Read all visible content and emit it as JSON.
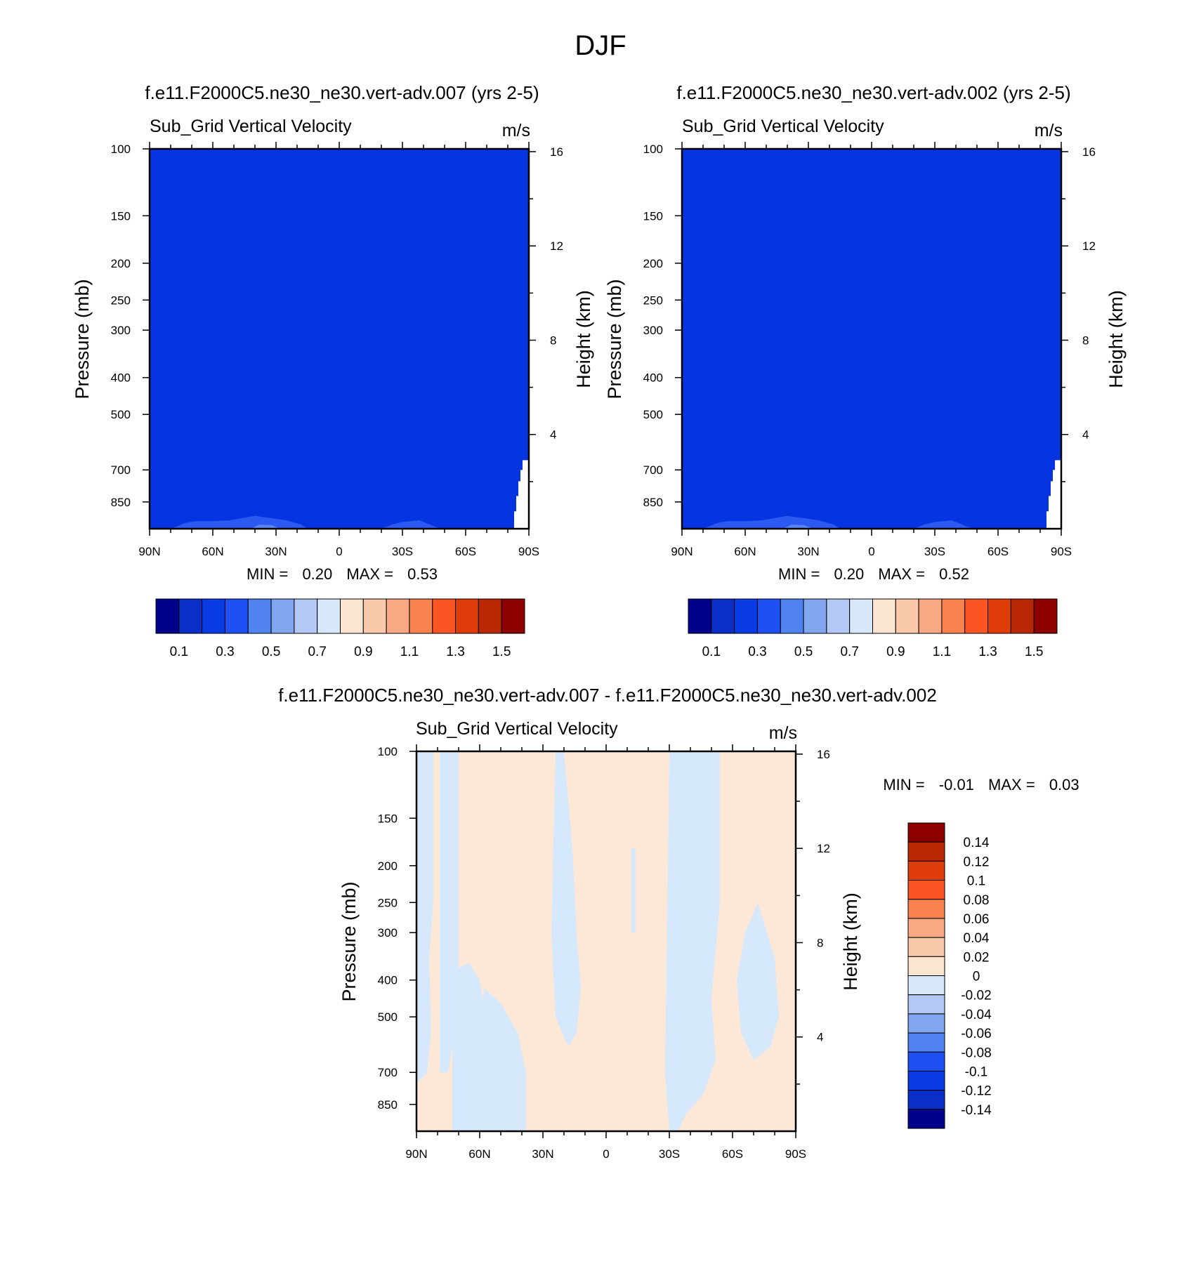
{
  "figure": {
    "title": "DJF",
    "diff_title": "f.e11.F2000C5.ne30_ne30.vert-adv.007 - f.e11.F2000C5.ne30_ne30.vert-adv.002"
  },
  "panels": [
    {
      "case_title": "f.e11.F2000C5.ne30_ne30.vert-adv.007 (yrs 2-5)",
      "field_title": "Sub_Grid Vertical Velocity",
      "units": "m/s",
      "ylabel": "Pressure (mb)",
      "ylabel_right": "Height (km)",
      "stats": {
        "min_label": "MIN =",
        "min": "0.20",
        "max_label": "MAX =",
        "max": "0.53"
      }
    },
    {
      "case_title": "f.e11.F2000C5.ne30_ne30.vert-adv.002 (yrs 2-5)",
      "field_title": "Sub_Grid Vertical Velocity",
      "units": "m/s",
      "ylabel": "Pressure (mb)",
      "ylabel_right": "Height (km)",
      "stats": {
        "min_label": "MIN =",
        "min": "0.20",
        "max_label": "MAX =",
        "max": "0.52"
      }
    },
    {
      "case_title": "",
      "field_title": "Sub_Grid Vertical Velocity",
      "units": "m/s",
      "ylabel": "Pressure (mb)",
      "ylabel_right": "Height (km)",
      "stats": {
        "min_label": "MIN =",
        "min": "-0.01",
        "max_label": "MAX =",
        "max": "0.03"
      }
    }
  ],
  "chart_data": [
    {
      "type": "heatmap",
      "title": "Sub_Grid Vertical Velocity",
      "units": "m/s",
      "x_ticks": [
        "90N",
        "60N",
        "30N",
        "0",
        "30S",
        "60S",
        "90S"
      ],
      "x_tick_values": [
        90,
        60,
        30,
        0,
        -30,
        -60,
        -90
      ],
      "xlim": [
        90,
        -90
      ],
      "y_ticks": [
        "100",
        "150",
        "200",
        "250",
        "300",
        "400",
        "500",
        "700",
        "850"
      ],
      "y_tick_values": [
        100,
        150,
        200,
        250,
        300,
        400,
        500,
        700,
        850
      ],
      "ylim": [
        100,
        1000
      ],
      "y_scale": "log",
      "y_right_ticks": [
        "16",
        "12",
        "8",
        "4"
      ],
      "y_right_values": [
        16,
        12,
        8,
        4
      ],
      "ylabel": "Pressure (mb)",
      "ylabel_right": "Height (km)",
      "min": 0.2,
      "max": 0.53,
      "dominant_value": 0.3,
      "features": [
        {
          "lat_range": [
            70,
            15
          ],
          "p_top": 840,
          "value": 0.4
        },
        {
          "lat_range": [
            -20,
            -45
          ],
          "p_top": 880,
          "value": 0.4
        },
        {
          "lat_range": [
            -87,
            -90
          ],
          "p_top": 660,
          "value": "missing"
        }
      ],
      "colorbar": {
        "labels": [
          "0.1",
          "0.3",
          "0.5",
          "0.7",
          "0.9",
          "1.1",
          "1.3",
          "1.5"
        ],
        "colors": [
          "#00008b",
          "#0a2fc8",
          "#0a3ce6",
          "#1e50f5",
          "#5082f0",
          "#82a5f0",
          "#b4c8f5",
          "#d7e8fa",
          "#fbe4d0",
          "#fac9ac",
          "#f8a882",
          "#f9824f",
          "#fa5523",
          "#e03c0a",
          "#b92805",
          "#8c0000"
        ]
      }
    },
    {
      "type": "heatmap",
      "title": "Sub_Grid Vertical Velocity",
      "units": "m/s",
      "x_ticks": [
        "90N",
        "60N",
        "30N",
        "0",
        "30S",
        "60S",
        "90S"
      ],
      "x_tick_values": [
        90,
        60,
        30,
        0,
        -30,
        -60,
        -90
      ],
      "xlim": [
        90,
        -90
      ],
      "y_ticks": [
        "100",
        "150",
        "200",
        "250",
        "300",
        "400",
        "500",
        "700",
        "850"
      ],
      "y_tick_values": [
        100,
        150,
        200,
        250,
        300,
        400,
        500,
        700,
        850
      ],
      "ylim": [
        100,
        1000
      ],
      "y_scale": "log",
      "y_right_ticks": [
        "16",
        "12",
        "8",
        "4"
      ],
      "y_right_values": [
        16,
        12,
        8,
        4
      ],
      "ylabel": "Pressure (mb)",
      "ylabel_right": "Height (km)",
      "min": 0.2,
      "max": 0.52,
      "dominant_value": 0.3,
      "features": [
        {
          "lat_range": [
            70,
            15
          ],
          "p_top": 840,
          "value": 0.4
        },
        {
          "lat_range": [
            -20,
            -45
          ],
          "p_top": 880,
          "value": 0.4
        },
        {
          "lat_range": [
            -87,
            -90
          ],
          "p_top": 660,
          "value": "missing"
        }
      ],
      "colorbar": {
        "labels": [
          "0.1",
          "0.3",
          "0.5",
          "0.7",
          "0.9",
          "1.1",
          "1.3",
          "1.5"
        ],
        "colors": [
          "#00008b",
          "#0a2fc8",
          "#0a3ce6",
          "#1e50f5",
          "#5082f0",
          "#82a5f0",
          "#b4c8f5",
          "#d7e8fa",
          "#fbe4d0",
          "#fac9ac",
          "#f8a882",
          "#f9824f",
          "#fa5523",
          "#e03c0a",
          "#b92805",
          "#8c0000"
        ]
      }
    },
    {
      "type": "heatmap",
      "title": "Sub_Grid Vertical Velocity",
      "units": "m/s",
      "x_ticks": [
        "90N",
        "60N",
        "30N",
        "0",
        "30S",
        "60S",
        "90S"
      ],
      "x_tick_values": [
        90,
        60,
        30,
        0,
        -30,
        -60,
        -90
      ],
      "xlim": [
        90,
        -90
      ],
      "y_ticks": [
        "100",
        "150",
        "200",
        "250",
        "300",
        "400",
        "500",
        "700",
        "850"
      ],
      "y_tick_values": [
        100,
        150,
        200,
        250,
        300,
        400,
        500,
        700,
        850
      ],
      "ylim": [
        100,
        1000
      ],
      "y_scale": "log",
      "y_right_ticks": [
        "16",
        "12",
        "8",
        "4"
      ],
      "y_right_values": [
        16,
        12,
        8,
        4
      ],
      "ylabel": "Pressure (mb)",
      "ylabel_right": "Height (km)",
      "min": -0.01,
      "max": 0.03,
      "dominant_value": 0.01,
      "features": [
        {
          "lat_range": [
            90,
            82
          ],
          "value": -0.01,
          "note": "negative column"
        },
        {
          "lat_range": [
            79,
            70
          ],
          "value": -0.01,
          "note": "negative column"
        },
        {
          "lat_range": [
            73,
            60
          ],
          "p_range": [
            350,
            1000
          ],
          "value": -0.01
        },
        {
          "lat_range": [
            62,
            38
          ],
          "p_range": [
            450,
            1000
          ],
          "value": -0.01
        },
        {
          "lat_range": [
            24,
            12
          ],
          "value": -0.01,
          "note": "negative column"
        },
        {
          "lat_range": [
            -30,
            -54
          ],
          "value": -0.01,
          "note": "negative column"
        },
        {
          "lat_range": [
            -62,
            -82
          ],
          "p_range": [
            250,
            650
          ],
          "value": -0.01
        }
      ],
      "colorbar": {
        "labels": [
          "0.14",
          "0.12",
          "0.1",
          "0.08",
          "0.06",
          "0.04",
          "0.02",
          "0",
          "-0.02",
          "-0.04",
          "-0.06",
          "-0.08",
          "-0.1",
          "-0.12",
          "-0.14"
        ],
        "colors": [
          "#8c0000",
          "#b92805",
          "#e03c0a",
          "#fa5523",
          "#f9824f",
          "#f8a882",
          "#fac9ac",
          "#fbe4d0",
          "#d7e8fa",
          "#b4c8f5",
          "#82a5f0",
          "#5082f0",
          "#1e50f5",
          "#0a3ce6",
          "#0a2fc8",
          "#00008b"
        ]
      }
    }
  ]
}
